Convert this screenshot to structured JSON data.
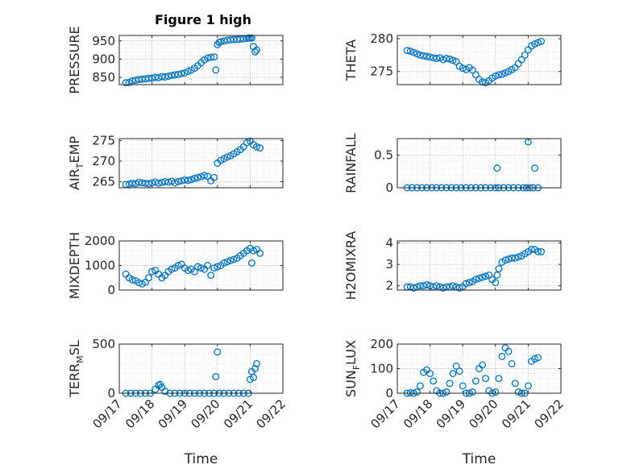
{
  "figure": {
    "title": "Figure 1 high"
  },
  "style": {
    "marker_color": "#0072BD",
    "axes_color": "#262626",
    "grid_color": "#b0b0b0",
    "background": "#ffffff"
  },
  "chart_data": [
    {
      "type": "scatter",
      "ylabel_main": "PRESSURE",
      "ylabel_sub": "",
      "ylabel_tail": "",
      "title": "Figure 1 high",
      "xlabel": "",
      "grid": true,
      "ylim": [
        830,
        965
      ],
      "yticks": [
        "850",
        "900",
        "950"
      ],
      "ytick_values": [
        850,
        900,
        950
      ],
      "xticks": [
        "09/17",
        "09/18",
        "09/19",
        "09/20",
        "09/21",
        "09/22"
      ],
      "show_xticklabels": false,
      "x": [
        17.2,
        17.3,
        17.4,
        17.5,
        17.6,
        17.7,
        17.8,
        17.9,
        18.0,
        18.1,
        18.2,
        18.3,
        18.4,
        18.5,
        18.6,
        18.7,
        18.8,
        18.9,
        19.0,
        19.1,
        19.2,
        19.3,
        19.4,
        19.5,
        19.6,
        19.7,
        19.8,
        19.9,
        19.95,
        20.0,
        20.05,
        20.1,
        20.2,
        20.3,
        20.4,
        20.5,
        20.6,
        20.7,
        20.8,
        20.9,
        20.95,
        21.0,
        21.05,
        21.1,
        21.15,
        21.2
      ],
      "y": [
        835,
        836,
        840,
        842,
        844,
        845,
        846,
        847,
        848,
        850,
        849,
        852,
        851,
        853,
        855,
        857,
        858,
        860,
        862,
        866,
        870,
        875,
        882,
        890,
        898,
        903,
        905,
        906,
        870,
        940,
        946,
        948,
        950,
        952,
        953,
        954,
        954,
        955,
        956,
        957,
        958,
        958,
        958,
        935,
        920,
        925
      ]
    },
    {
      "type": "scatter",
      "ylabel_main": "THETA",
      "ylabel_sub": "",
      "ylabel_tail": "",
      "xlabel": "",
      "grid": true,
      "ylim": [
        273,
        280.5
      ],
      "yticks": [
        "275",
        "280"
      ],
      "ytick_values": [
        275,
        280
      ],
      "xticks": [
        "09/17",
        "09/18",
        "09/19",
        "09/20",
        "09/21",
        "09/22"
      ],
      "show_xticklabels": false,
      "x": [
        17.3,
        17.4,
        17.5,
        17.6,
        17.7,
        17.8,
        17.9,
        18.0,
        18.1,
        18.2,
        18.3,
        18.4,
        18.5,
        18.6,
        18.7,
        18.8,
        18.9,
        19.0,
        19.1,
        19.2,
        19.3,
        19.4,
        19.5,
        19.6,
        19.7,
        19.8,
        19.9,
        20.0,
        20.1,
        20.2,
        20.3,
        20.4,
        20.5,
        20.6,
        20.7,
        20.8,
        20.9,
        21.0,
        21.1,
        21.2,
        21.3,
        21.4
      ],
      "y": [
        278.2,
        278.1,
        277.9,
        277.7,
        277.5,
        277.4,
        277.3,
        277.2,
        277.1,
        277.0,
        277.1,
        276.8,
        277.0,
        276.9,
        276.7,
        276.5,
        275.8,
        275.5,
        275.3,
        275.6,
        275.2,
        274.5,
        273.8,
        273.4,
        273.3,
        273.6,
        274.0,
        274.3,
        274.5,
        274.6,
        274.8,
        275.0,
        275.3,
        275.6,
        276.2,
        276.8,
        277.5,
        278.3,
        278.9,
        279.2,
        279.4,
        279.6
      ]
    },
    {
      "type": "scatter",
      "ylabel_main": "AIR",
      "ylabel_sub": "T",
      "ylabel_tail": "EMP",
      "xlabel": "",
      "grid": true,
      "ylim": [
        263.5,
        275.5
      ],
      "yticks": [
        "265",
        "270",
        "275"
      ],
      "ytick_values": [
        265,
        270,
        275
      ],
      "xticks": [
        "09/17",
        "09/18",
        "09/19",
        "09/20",
        "09/21",
        "09/22"
      ],
      "show_xticklabels": false,
      "x": [
        17.2,
        17.3,
        17.4,
        17.5,
        17.6,
        17.7,
        17.8,
        17.9,
        18.0,
        18.1,
        18.2,
        18.3,
        18.4,
        18.5,
        18.6,
        18.7,
        18.8,
        18.9,
        19.0,
        19.1,
        19.2,
        19.3,
        19.4,
        19.5,
        19.6,
        19.7,
        19.8,
        19.9,
        20.0,
        20.1,
        20.2,
        20.3,
        20.4,
        20.5,
        20.6,
        20.7,
        20.8,
        20.9,
        21.0,
        21.1,
        21.2,
        21.3
      ],
      "y": [
        264.3,
        264.4,
        264.6,
        264.5,
        264.8,
        264.7,
        264.6,
        264.5,
        264.7,
        264.9,
        264.6,
        264.8,
        265.0,
        264.9,
        265.1,
        264.7,
        265.0,
        265.2,
        265.4,
        265.3,
        265.5,
        265.8,
        266.0,
        266.2,
        266.5,
        266.3,
        265.2,
        266.0,
        269.5,
        270.2,
        270.6,
        271.0,
        271.3,
        271.8,
        272.3,
        272.8,
        273.5,
        274.5,
        274.9,
        274.0,
        273.5,
        273.2
      ]
    },
    {
      "type": "scatter",
      "ylabel_main": "RAINFALL",
      "ylabel_sub": "",
      "ylabel_tail": "",
      "xlabel": "",
      "grid": true,
      "ylim": [
        0,
        0.75
      ],
      "yticks": [
        "0",
        "0.5"
      ],
      "ytick_values": [
        0,
        0.5
      ],
      "xticks": [
        "09/17",
        "09/18",
        "09/19",
        "09/20",
        "09/21",
        "09/22"
      ],
      "show_xticklabels": false,
      "x": [
        17.3,
        17.45,
        17.6,
        17.75,
        17.9,
        18.05,
        18.2,
        18.35,
        18.5,
        18.65,
        18.8,
        18.95,
        19.1,
        19.25,
        19.4,
        19.55,
        19.7,
        19.85,
        20.0,
        20.05,
        20.1,
        20.25,
        20.4,
        20.55,
        20.7,
        20.85,
        20.95,
        21.0,
        21.05,
        21.15,
        21.2,
        21.3
      ],
      "y": [
        0,
        0,
        0,
        0,
        0,
        0,
        0,
        0,
        0,
        0,
        0,
        0,
        0,
        0,
        0,
        0,
        0,
        0,
        0,
        0.3,
        0,
        0,
        0,
        0,
        0,
        0,
        0,
        0.7,
        0,
        0,
        0.3,
        0
      ]
    },
    {
      "type": "scatter",
      "ylabel_main": "MIXDEPTH",
      "ylabel_sub": "",
      "ylabel_tail": "",
      "xlabel": "",
      "grid": true,
      "ylim": [
        0,
        2000
      ],
      "yticks": [
        "0",
        "1000",
        "2000"
      ],
      "ytick_values": [
        0,
        1000,
        2000
      ],
      "xticks": [
        "09/17",
        "09/18",
        "09/19",
        "09/20",
        "09/21",
        "09/22"
      ],
      "show_xticklabels": false,
      "x": [
        17.2,
        17.3,
        17.4,
        17.5,
        17.6,
        17.7,
        17.8,
        17.9,
        18.0,
        18.1,
        18.2,
        18.3,
        18.4,
        18.5,
        18.6,
        18.7,
        18.8,
        18.9,
        19.0,
        19.1,
        19.2,
        19.3,
        19.4,
        19.5,
        19.6,
        19.7,
        19.8,
        19.9,
        20.0,
        20.1,
        20.2,
        20.3,
        20.4,
        20.5,
        20.6,
        20.7,
        20.8,
        20.9,
        21.0,
        21.05,
        21.1,
        21.2,
        21.3
      ],
      "y": [
        650,
        500,
        420,
        380,
        300,
        250,
        320,
        500,
        750,
        800,
        650,
        500,
        600,
        750,
        850,
        900,
        1000,
        1050,
        900,
        800,
        850,
        750,
        950,
        900,
        850,
        1000,
        600,
        900,
        950,
        1000,
        1100,
        1150,
        1200,
        1250,
        1300,
        1400,
        1500,
        1600,
        1700,
        1100,
        1600,
        1650,
        1500
      ]
    },
    {
      "type": "scatter",
      "ylabel_main": "H2OMIXRA",
      "ylabel_sub": "",
      "ylabel_tail": "",
      "xlabel": "",
      "grid": true,
      "ylim": [
        1.8,
        4.1
      ],
      "yticks": [
        "2",
        "3",
        "4"
      ],
      "ytick_values": [
        2,
        3,
        4
      ],
      "xticks": [
        "09/17",
        "09/18",
        "09/19",
        "09/20",
        "09/21",
        "09/22"
      ],
      "show_xticklabels": false,
      "x": [
        17.3,
        17.4,
        17.5,
        17.6,
        17.7,
        17.8,
        17.9,
        18.0,
        18.1,
        18.2,
        18.3,
        18.4,
        18.5,
        18.6,
        18.7,
        18.8,
        18.9,
        19.0,
        19.1,
        19.2,
        19.3,
        19.4,
        19.5,
        19.6,
        19.7,
        19.8,
        19.9,
        20.0,
        20.05,
        20.1,
        20.2,
        20.3,
        20.4,
        20.5,
        20.6,
        20.7,
        20.8,
        20.9,
        21.0,
        21.1,
        21.2,
        21.3,
        21.4
      ],
      "y": [
        1.95,
        1.95,
        1.9,
        1.95,
        2.0,
        2.0,
        2.05,
        2.0,
        1.95,
        2.0,
        1.95,
        1.9,
        1.95,
        1.95,
        2.0,
        1.95,
        1.9,
        1.95,
        2.1,
        2.15,
        2.2,
        2.3,
        2.35,
        2.4,
        2.45,
        2.5,
        2.3,
        2.15,
        2.5,
        2.8,
        3.1,
        3.2,
        3.25,
        3.3,
        3.3,
        3.35,
        3.4,
        3.5,
        3.6,
        3.7,
        3.7,
        3.6,
        3.6
      ]
    },
    {
      "type": "scatter",
      "ylabel_main": "TERR",
      "ylabel_sub": "M",
      "ylabel_tail": "SL",
      "xlabel": "Time",
      "grid": true,
      "ylim": [
        0,
        500
      ],
      "yticks": [
        "0",
        "500"
      ],
      "ytick_values": [
        0,
        500
      ],
      "xticks": [
        "09/17",
        "09/18",
        "09/19",
        "09/20",
        "09/21",
        "09/22"
      ],
      "show_xticklabels": true,
      "x": [
        17.2,
        17.35,
        17.5,
        17.65,
        17.8,
        17.95,
        18.1,
        18.2,
        18.25,
        18.3,
        18.4,
        18.55,
        18.7,
        18.85,
        19.0,
        19.15,
        19.3,
        19.45,
        19.6,
        19.75,
        19.9,
        19.95,
        20.0,
        20.05,
        20.2,
        20.35,
        20.5,
        20.65,
        20.8,
        20.95,
        21.0,
        21.05,
        21.1,
        21.15,
        21.2
      ],
      "y": [
        0,
        0,
        0,
        0,
        0,
        0,
        40,
        80,
        90,
        60,
        20,
        0,
        0,
        0,
        0,
        0,
        0,
        0,
        0,
        0,
        0,
        170,
        420,
        0,
        0,
        0,
        0,
        0,
        0,
        0,
        140,
        220,
        160,
        250,
        300
      ]
    },
    {
      "type": "scatter",
      "ylabel_main": "SUN",
      "ylabel_sub": "F",
      "ylabel_tail": "LUX",
      "xlabel": "Time",
      "grid": true,
      "ylim": [
        0,
        200
      ],
      "yticks": [
        "0",
        "100",
        "200"
      ],
      "ytick_values": [
        0,
        100,
        200
      ],
      "xticks": [
        "09/17",
        "09/18",
        "09/19",
        "09/20",
        "09/21",
        "09/22"
      ],
      "show_xticklabels": true,
      "x": [
        17.3,
        17.4,
        17.5,
        17.6,
        17.7,
        17.8,
        17.9,
        18.0,
        18.1,
        18.2,
        18.3,
        18.4,
        18.5,
        18.6,
        18.7,
        18.8,
        18.9,
        19.0,
        19.1,
        19.2,
        19.3,
        19.4,
        19.5,
        19.6,
        19.7,
        19.8,
        19.9,
        20.0,
        20.1,
        20.2,
        20.3,
        20.4,
        20.5,
        20.6,
        20.7,
        20.8,
        20.9,
        21.0,
        21.1,
        21.2,
        21.3
      ],
      "y": [
        0,
        2,
        0,
        5,
        30,
        85,
        95,
        80,
        50,
        10,
        0,
        0,
        5,
        40,
        80,
        110,
        90,
        30,
        0,
        0,
        5,
        50,
        100,
        115,
        60,
        10,
        0,
        5,
        60,
        150,
        185,
        170,
        120,
        40,
        5,
        0,
        0,
        30,
        130,
        140,
        145
      ]
    }
  ]
}
